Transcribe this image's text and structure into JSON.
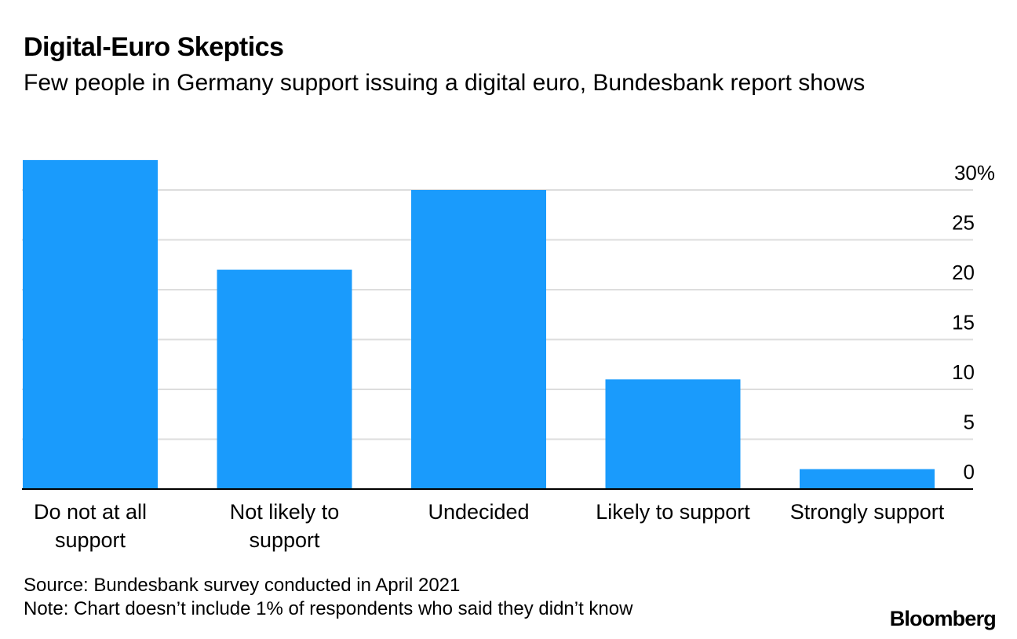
{
  "header": {
    "title": "Digital-Euro Skeptics",
    "subtitle": "Few people in Germany support issuing a digital euro, Bundesbank report shows"
  },
  "chart_data": {
    "type": "bar",
    "title": "Digital-Euro Skeptics",
    "subtitle": "Few people in Germany support issuing a digital euro, Bundesbank report shows",
    "categories": [
      [
        "Do not at all",
        "support"
      ],
      [
        "Not likely to",
        "support"
      ],
      [
        "Undecided"
      ],
      [
        "Likely to support"
      ],
      [
        "Strongly support"
      ]
    ],
    "values": [
      33,
      22,
      30,
      11,
      2
    ],
    "ylim": [
      0,
      30
    ],
    "yticks": [
      0,
      5,
      10,
      15,
      20,
      25,
      30
    ],
    "ytick_labels": [
      "0",
      "5",
      "10",
      "15",
      "20",
      "25",
      "30%"
    ],
    "y_axis_side": "right",
    "xlabel": "",
    "ylabel": "",
    "grid": true,
    "colors": {
      "bar": "#1a9bfc",
      "grid": "#dddddd",
      "axis": "#000000"
    }
  },
  "footer": {
    "source": "Source: Bundesbank survey conducted in April 2021",
    "note": "Note: Chart doesn’t include 1% of respondents who said they didn’t know",
    "brand": "Bloomberg"
  }
}
